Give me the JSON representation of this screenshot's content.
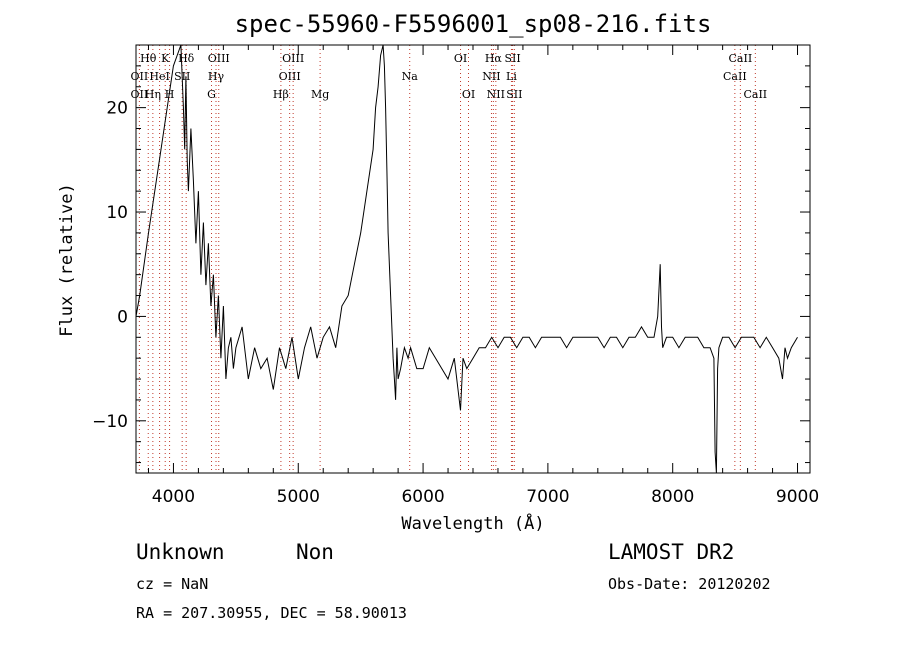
{
  "chart_data": {
    "type": "line",
    "title": "spec-55960-F5596001_sp08-216.fits",
    "xlabel": "Wavelength (Å)",
    "ylabel": "Flux (relative)",
    "xlim": [
      3700,
      9100
    ],
    "ylim": [
      -15,
      26
    ],
    "xticks": [
      4000,
      5000,
      6000,
      7000,
      8000,
      9000
    ],
    "yticks": [
      -10,
      0,
      10,
      20
    ],
    "grid": false,
    "series": [
      {
        "x": [
          3700,
          3730,
          3800,
          3900,
          4000,
          4060,
          4080,
          4090,
          4100,
          4110,
          4120,
          4140,
          4160,
          4180,
          4200,
          4220,
          4240,
          4260,
          4280,
          4300,
          4320,
          4340,
          4360,
          4380,
          4400,
          4420,
          4440,
          4460,
          4480,
          4500,
          4550,
          4600,
          4650,
          4700,
          4750,
          4800,
          4850,
          4900,
          4950,
          5000,
          5050,
          5100,
          5150,
          5200,
          5250,
          5300,
          5350,
          5400,
          5450,
          5500,
          5550,
          5600,
          5620,
          5640,
          5660,
          5680,
          5690,
          5700,
          5710,
          5720,
          5740,
          5760,
          5770,
          5780,
          5790,
          5800,
          5820,
          5850,
          5880,
          5900,
          5950,
          6000,
          6050,
          6100,
          6150,
          6200,
          6250,
          6280,
          6300,
          6320,
          6350,
          6400,
          6450,
          6500,
          6550,
          6600,
          6650,
          6700,
          6750,
          6800,
          6850,
          6900,
          6950,
          7000,
          7050,
          7100,
          7150,
          7200,
          7250,
          7300,
          7350,
          7400,
          7450,
          7500,
          7550,
          7600,
          7650,
          7700,
          7750,
          7800,
          7850,
          7880,
          7900,
          7910,
          7920,
          7950,
          8000,
          8050,
          8100,
          8150,
          8200,
          8250,
          8300,
          8330,
          8340,
          8350,
          8360,
          8370,
          8400,
          8450,
          8500,
          8550,
          8600,
          8650,
          8700,
          8750,
          8800,
          8850,
          8880,
          8900,
          8920,
          8950,
          9000
        ],
        "y": [
          0,
          2,
          8,
          16,
          24,
          26,
          20,
          16,
          23,
          15,
          12,
          18,
          13,
          7,
          12,
          4,
          9,
          3,
          7,
          1,
          4,
          -2,
          2,
          -4,
          1,
          -6,
          -3,
          -2,
          -5,
          -3,
          -1,
          -6,
          -3,
          -5,
          -4,
          -7,
          -3,
          -5,
          -2,
          -6,
          -3,
          -1,
          -4,
          -2,
          -1,
          -3,
          1,
          2,
          5,
          8,
          12,
          16,
          20,
          22,
          25,
          26,
          24,
          20,
          14,
          8,
          2,
          -4,
          -6,
          -8,
          -3,
          -6,
          -5,
          -3,
          -4,
          -3,
          -5,
          -5,
          -3,
          -4,
          -5,
          -6,
          -4,
          -7,
          -9,
          -4,
          -5,
          -4,
          -3,
          -3,
          -2,
          -3,
          -2,
          -2,
          -3,
          -2,
          -2,
          -3,
          -2,
          -2,
          -2,
          -2,
          -3,
          -2,
          -2,
          -2,
          -2,
          -2,
          -3,
          -2,
          -2,
          -3,
          -2,
          -2,
          -1,
          -2,
          -2,
          0,
          5,
          -1,
          -3,
          -2,
          -2,
          -3,
          -2,
          -2,
          -2,
          -3,
          -3,
          -4,
          -13,
          -15,
          -5,
          -3,
          -2,
          -2,
          -3,
          -2,
          -2,
          -2,
          -3,
          -2,
          -3,
          -4,
          -6,
          -3,
          -4,
          -3,
          -2
        ]
      }
    ],
    "line_labels": [
      {
        "label": "Hθ",
        "x": 3798,
        "row": 1
      },
      {
        "label": "K",
        "x": 3934,
        "row": 1
      },
      {
        "label": "Hδ",
        "x": 4102,
        "row": 1
      },
      {
        "label": "OII",
        "x": 3727,
        "row": 2
      },
      {
        "label": "HeI",
        "x": 3889,
        "row": 2
      },
      {
        "label": "SII",
        "x": 4070,
        "row": 2
      },
      {
        "label": "OII",
        "x": 3727,
        "row": 3
      },
      {
        "label": "Hη",
        "x": 3835,
        "row": 3
      },
      {
        "label": "H",
        "x": 3969,
        "row": 3
      },
      {
        "label": "OIII",
        "x": 4363,
        "row": 1
      },
      {
        "label": "Hγ",
        "x": 4341,
        "row": 2
      },
      {
        "label": "G",
        "x": 4305,
        "row": 3
      },
      {
        "label": "OIII",
        "x": 4959,
        "row": 1
      },
      {
        "label": "OIII",
        "x": 4931,
        "row": 2
      },
      {
        "label": "Hβ",
        "x": 4861,
        "row": 3
      },
      {
        "label": "Mg",
        "x": 5175,
        "row": 3
      },
      {
        "label": "Na",
        "x": 5893,
        "row": 2
      },
      {
        "label": "OI",
        "x": 6300,
        "row": 1
      },
      {
        "label": "OI",
        "x": 6364,
        "row": 3
      },
      {
        "label": "Hα",
        "x": 6563,
        "row": 1
      },
      {
        "label": "SII",
        "x": 6717,
        "row": 1
      },
      {
        "label": "NII",
        "x": 6548,
        "row": 2
      },
      {
        "label": "Li",
        "x": 6708,
        "row": 2
      },
      {
        "label": "NII",
        "x": 6583,
        "row": 3
      },
      {
        "label": "SII",
        "x": 6731,
        "row": 3
      },
      {
        "label": "CaII",
        "x": 8542,
        "row": 1
      },
      {
        "label": "CaII",
        "x": 8498,
        "row": 2
      },
      {
        "label": "CaII",
        "x": 8662,
        "row": 3
      }
    ]
  },
  "info": {
    "class": "Unknown",
    "subclass": "Non",
    "survey": "LAMOST DR2",
    "cz": "cz = NaN",
    "obs_date": "Obs-Date: 20120202",
    "coords": "RA = 207.30955, DEC =  58.90013"
  }
}
